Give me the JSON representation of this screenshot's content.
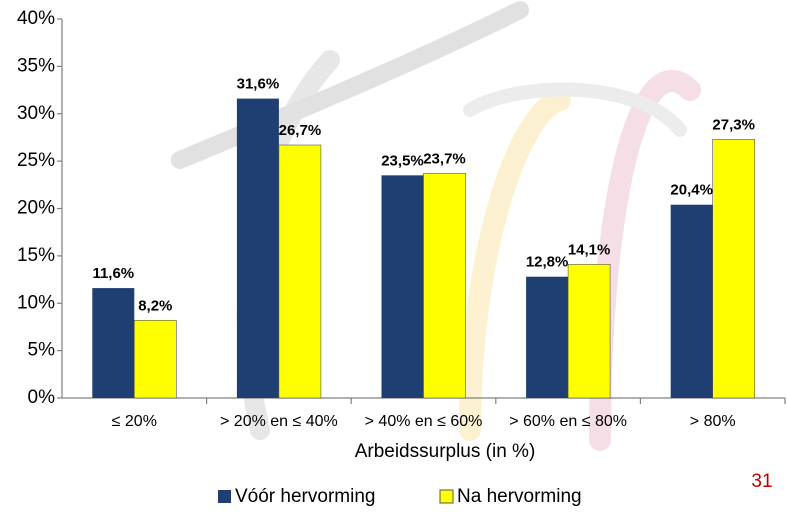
{
  "chart_data": {
    "type": "bar",
    "x_label": "Arbeidssurplus (in %)",
    "categories": [
      "≤ 20%",
      "> 20% en ≤ 40%",
      "> 40% en ≤ 60%",
      "> 60% en ≤ 80%",
      "> 80%"
    ],
    "series": [
      {
        "name": "Vóór hervorming",
        "color": "#1f3f73",
        "values": [
          11.6,
          31.6,
          23.5,
          12.8,
          20.4
        ],
        "value_labels": [
          "11,6%",
          "31,6%",
          "23,5%",
          "12,8%",
          "20,4%"
        ]
      },
      {
        "name": "Na hervorming",
        "color": "#ffff00",
        "values": [
          8.2,
          26.7,
          23.7,
          14.1,
          27.3
        ],
        "value_labels": [
          "8,2%",
          "26,7%",
          "23,7%",
          "14,1%",
          "27,3%"
        ]
      }
    ],
    "ylim": [
      0,
      40
    ],
    "yticks": [
      {
        "value": 0,
        "label": "0%"
      },
      {
        "value": 5,
        "label": "5%"
      },
      {
        "value": 10,
        "label": "10%"
      },
      {
        "value": 15,
        "label": "15%"
      },
      {
        "value": 20,
        "label": "20%"
      },
      {
        "value": 25,
        "label": "25%"
      },
      {
        "value": 30,
        "label": "30%"
      },
      {
        "value": 35,
        "label": "35%"
      },
      {
        "value": 40,
        "label": "40%"
      }
    ],
    "grid": false,
    "legend": "bottom",
    "page_number": "31"
  }
}
